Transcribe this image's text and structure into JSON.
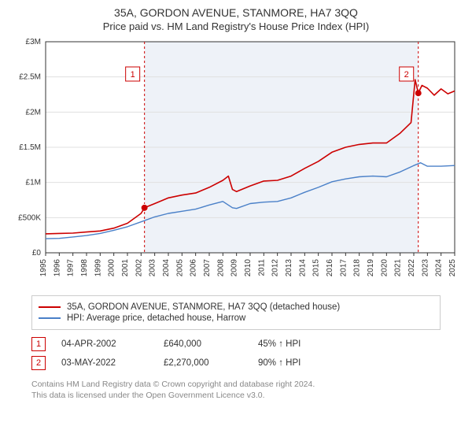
{
  "title": "35A, GORDON AVENUE, STANMORE, HA7 3QQ",
  "subtitle": "Price paid vs. HM Land Registry's House Price Index (HPI)",
  "chart": {
    "type": "line",
    "background_color": "#ffffff",
    "shaded_band_color": "#eef2f8",
    "grid_color": "#e0e0e0",
    "axis_color": "#333333",
    "tick_font_size": 10,
    "x_start_year": 1995,
    "x_end_year": 2025,
    "x_tick_step": 1,
    "y_min": 0,
    "y_max": 3000000,
    "y_tick_step": 500000,
    "y_tick_labels": [
      "£0",
      "£500K",
      "£1M",
      "£1.5M",
      "£2M",
      "£2.5M",
      "£3M"
    ],
    "shaded_start_year": 2002.25,
    "shaded_end_year": 2022.33,
    "series": [
      {
        "name": "price_paid",
        "color": "#cc0000",
        "line_width": 1.6,
        "points": [
          [
            1995,
            270000
          ],
          [
            1996,
            275000
          ],
          [
            1997,
            280000
          ],
          [
            1998,
            295000
          ],
          [
            1999,
            310000
          ],
          [
            2000,
            350000
          ],
          [
            2001,
            420000
          ],
          [
            2002,
            560000
          ],
          [
            2002.25,
            640000
          ],
          [
            2003,
            700000
          ],
          [
            2004,
            780000
          ],
          [
            2005,
            820000
          ],
          [
            2006,
            850000
          ],
          [
            2007,
            930000
          ],
          [
            2008,
            1030000
          ],
          [
            2008.4,
            1090000
          ],
          [
            2008.7,
            900000
          ],
          [
            2009,
            870000
          ],
          [
            2010,
            950000
          ],
          [
            2011,
            1020000
          ],
          [
            2012,
            1030000
          ],
          [
            2013,
            1090000
          ],
          [
            2014,
            1200000
          ],
          [
            2015,
            1300000
          ],
          [
            2016,
            1430000
          ],
          [
            2017,
            1500000
          ],
          [
            2018,
            1540000
          ],
          [
            2019,
            1560000
          ],
          [
            2020,
            1560000
          ],
          [
            2021,
            1700000
          ],
          [
            2021.8,
            1850000
          ],
          [
            2022.1,
            2460000
          ],
          [
            2022.33,
            2270000
          ],
          [
            2022.6,
            2380000
          ],
          [
            2023,
            2340000
          ],
          [
            2023.5,
            2240000
          ],
          [
            2024,
            2330000
          ],
          [
            2024.5,
            2260000
          ],
          [
            2025,
            2300000
          ]
        ]
      },
      {
        "name": "hpi",
        "color": "#4a80c8",
        "line_width": 1.4,
        "points": [
          [
            1995,
            200000
          ],
          [
            1996,
            205000
          ],
          [
            1997,
            225000
          ],
          [
            1998,
            245000
          ],
          [
            1999,
            275000
          ],
          [
            2000,
            320000
          ],
          [
            2001,
            370000
          ],
          [
            2002,
            440000
          ],
          [
            2003,
            510000
          ],
          [
            2004,
            560000
          ],
          [
            2005,
            590000
          ],
          [
            2006,
            620000
          ],
          [
            2007,
            680000
          ],
          [
            2008,
            730000
          ],
          [
            2008.7,
            640000
          ],
          [
            2009,
            630000
          ],
          [
            2010,
            700000
          ],
          [
            2011,
            720000
          ],
          [
            2012,
            730000
          ],
          [
            2013,
            780000
          ],
          [
            2014,
            860000
          ],
          [
            2015,
            930000
          ],
          [
            2016,
            1010000
          ],
          [
            2017,
            1050000
          ],
          [
            2018,
            1080000
          ],
          [
            2019,
            1090000
          ],
          [
            2020,
            1080000
          ],
          [
            2021,
            1150000
          ],
          [
            2022,
            1240000
          ],
          [
            2022.5,
            1280000
          ],
          [
            2023,
            1230000
          ],
          [
            2024,
            1230000
          ],
          [
            2025,
            1240000
          ]
        ]
      }
    ],
    "annotations": [
      {
        "id": "1",
        "year": 2002.25,
        "value": 640000,
        "color": "#cc0000",
        "line_dash": "3,3",
        "label_y_value": 2530000
      },
      {
        "id": "2",
        "year": 2022.33,
        "value": 2270000,
        "color": "#cc0000",
        "line_dash": "3,3",
        "label_y_value": 2530000
      }
    ]
  },
  "legend": [
    {
      "color": "#cc0000",
      "label": "35A, GORDON AVENUE, STANMORE, HA7 3QQ (detached house)"
    },
    {
      "color": "#4a80c8",
      "label": "HPI: Average price, detached house, Harrow"
    }
  ],
  "sales": [
    {
      "badge": "1",
      "badge_color": "#cc0000",
      "date": "04-APR-2002",
      "price": "£640,000",
      "pct": "45% ↑ HPI"
    },
    {
      "badge": "2",
      "badge_color": "#cc0000",
      "date": "03-MAY-2022",
      "price": "£2,270,000",
      "pct": "90% ↑ HPI"
    }
  ],
  "footer_line1": "Contains HM Land Registry data © Crown copyright and database right 2024.",
  "footer_line2": "This data is licensed under the Open Government Licence v3.0."
}
